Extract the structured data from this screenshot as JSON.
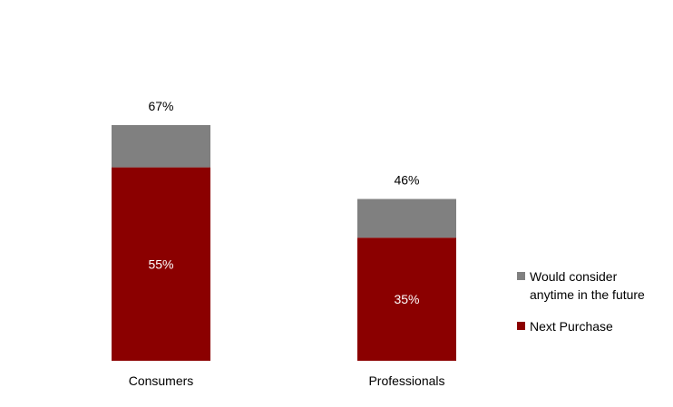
{
  "chart_data": {
    "type": "bar",
    "stacked": true,
    "categories": [
      "Consumers",
      "Professionals"
    ],
    "series": [
      {
        "name": "Next Purchase",
        "values": [
          55,
          35
        ],
        "value_labels": [
          "55%",
          "35%"
        ],
        "color": "#8b0000"
      },
      {
        "name": "Would consider anytime in the future",
        "name_lines": [
          "Would consider",
          "anytime in the future"
        ],
        "values": [
          12,
          11
        ],
        "color": "#808080"
      }
    ],
    "totals": [
      67,
      46
    ],
    "total_labels": [
      "67%",
      "46%"
    ],
    "ylim": [
      0,
      67
    ],
    "legend": "right",
    "grid": false,
    "title": "",
    "xlabel": "",
    "ylabel": ""
  }
}
